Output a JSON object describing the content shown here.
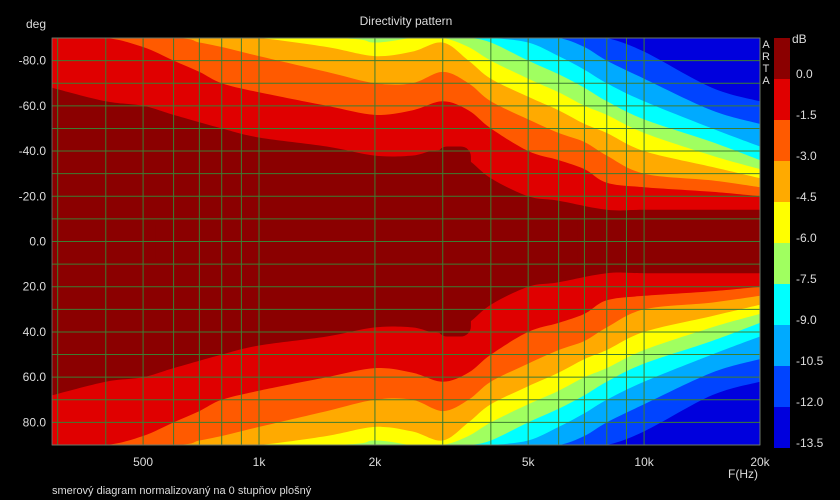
{
  "chart_data": {
    "type": "heatmap",
    "title": "Directivity pattern",
    "ylabel": "deg",
    "xlabel": "F(Hz)",
    "colorbar_label": "dB",
    "watermark": [
      "A",
      "R",
      "T",
      "A"
    ],
    "footnote": "smerový diagram normalizovaný na 0 stupňov plošný",
    "x_scale": "log",
    "xlim": [
      290,
      20000
    ],
    "ylim": [
      -90,
      90
    ],
    "y_inverted": true,
    "x_ticks": [
      {
        "value": 500,
        "label": "500"
      },
      {
        "value": 1000,
        "label": "1k"
      },
      {
        "value": 2000,
        "label": "2k"
      },
      {
        "value": 5000,
        "label": "5k"
      },
      {
        "value": 10000,
        "label": "10k"
      },
      {
        "value": 20000,
        "label": "20k"
      }
    ],
    "x_gridlines": [
      300,
      400,
      500,
      600,
      700,
      800,
      900,
      1000,
      2000,
      3000,
      4000,
      5000,
      6000,
      7000,
      8000,
      9000,
      10000,
      20000
    ],
    "y_ticks": [
      {
        "value": -80,
        "label": "-80.0"
      },
      {
        "value": -60,
        "label": "-60.0"
      },
      {
        "value": -40,
        "label": "-40.0"
      },
      {
        "value": -20,
        "label": "-20.0"
      },
      {
        "value": 0,
        "label": "0.0"
      },
      {
        "value": 20,
        "label": "20.0"
      },
      {
        "value": 40,
        "label": "40.0"
      },
      {
        "value": 60,
        "label": "60.0"
      },
      {
        "value": 80,
        "label": "80.0"
      }
    ],
    "levels": [
      {
        "label": "0.0",
        "color": "#8b0000"
      },
      {
        "label": "-1.5",
        "color": "#e00000"
      },
      {
        "label": "-3.0",
        "color": "#ff5a00"
      },
      {
        "label": "-4.5",
        "color": "#ffaa00"
      },
      {
        "label": "-6.0",
        "color": "#ffff00"
      },
      {
        "label": "-7.5",
        "color": "#a0ff60"
      },
      {
        "label": "-9.0",
        "color": "#00ffff"
      },
      {
        "label": "-10.5",
        "color": "#00aaff"
      },
      {
        "label": "-12.0",
        "color": "#0044ff"
      },
      {
        "label": "-13.5",
        "color": "#0000dd"
      }
    ],
    "bands": [
      {
        "level": -1.5,
        "half_angle": [
          [
            290,
            68
          ],
          [
            400,
            62
          ],
          [
            500,
            60
          ],
          [
            600,
            56
          ],
          [
            800,
            50
          ],
          [
            1000,
            46
          ],
          [
            1500,
            42
          ],
          [
            2000,
            38
          ],
          [
            2500,
            38
          ],
          [
            2800,
            40
          ],
          [
            3100,
            40
          ],
          [
            3500,
            36
          ],
          [
            4000,
            28
          ],
          [
            5000,
            20
          ],
          [
            6000,
            18
          ],
          [
            8000,
            14
          ],
          [
            10000,
            14
          ],
          [
            15000,
            14
          ],
          [
            20000,
            14
          ]
        ]
      },
      {
        "level": -3.0,
        "half_angle": [
          [
            290,
            90
          ],
          [
            400,
            90
          ],
          [
            500,
            86
          ],
          [
            600,
            80
          ],
          [
            700,
            75
          ],
          [
            800,
            70
          ],
          [
            1000,
            66
          ],
          [
            1500,
            60
          ],
          [
            2000,
            56
          ],
          [
            2500,
            58
          ],
          [
            3000,
            62
          ],
          [
            3500,
            58
          ],
          [
            4000,
            50
          ],
          [
            5000,
            40
          ],
          [
            6000,
            36
          ],
          [
            7000,
            32
          ],
          [
            8000,
            26
          ],
          [
            10000,
            24
          ],
          [
            15000,
            22
          ],
          [
            20000,
            20
          ]
        ]
      },
      {
        "level": -4.5,
        "half_angle": [
          [
            290,
            90
          ],
          [
            600,
            90
          ],
          [
            700,
            88
          ],
          [
            800,
            86
          ],
          [
            1000,
            82
          ],
          [
            1500,
            75
          ],
          [
            2000,
            70
          ],
          [
            2500,
            70
          ],
          [
            3000,
            75
          ],
          [
            3500,
            70
          ],
          [
            4000,
            62
          ],
          [
            5000,
            54
          ],
          [
            6000,
            48
          ],
          [
            7000,
            44
          ],
          [
            8000,
            38
          ],
          [
            10000,
            30
          ],
          [
            15000,
            27
          ],
          [
            20000,
            24
          ]
        ]
      },
      {
        "level": -6.0,
        "half_angle": [
          [
            290,
            90
          ],
          [
            800,
            90
          ],
          [
            1000,
            90
          ],
          [
            1500,
            86
          ],
          [
            2000,
            82
          ],
          [
            2500,
            84
          ],
          [
            3000,
            88
          ],
          [
            3500,
            80
          ],
          [
            4000,
            72
          ],
          [
            5000,
            64
          ],
          [
            6000,
            58
          ],
          [
            7000,
            52
          ],
          [
            8000,
            48
          ],
          [
            10000,
            40
          ],
          [
            15000,
            33
          ],
          [
            20000,
            28
          ]
        ]
      },
      {
        "level": -7.5,
        "half_angle": [
          [
            290,
            90
          ],
          [
            1500,
            90
          ],
          [
            2000,
            88
          ],
          [
            2500,
            90
          ],
          [
            3000,
            90
          ],
          [
            3500,
            86
          ],
          [
            4000,
            80
          ],
          [
            5000,
            72
          ],
          [
            6000,
            66
          ],
          [
            7000,
            60
          ],
          [
            8000,
            56
          ],
          [
            10000,
            48
          ],
          [
            15000,
            38
          ],
          [
            20000,
            32
          ]
        ]
      },
      {
        "level": -9.0,
        "half_angle": [
          [
            290,
            90
          ],
          [
            2000,
            90
          ],
          [
            3000,
            90
          ],
          [
            3500,
            90
          ],
          [
            4000,
            88
          ],
          [
            5000,
            80
          ],
          [
            6000,
            74
          ],
          [
            7000,
            68
          ],
          [
            8000,
            62
          ],
          [
            10000,
            54
          ],
          [
            15000,
            44
          ],
          [
            20000,
            36
          ]
        ]
      },
      {
        "level": -10.5,
        "half_angle": [
          [
            290,
            90
          ],
          [
            3500,
            90
          ],
          [
            4000,
            90
          ],
          [
            5000,
            88
          ],
          [
            6000,
            82
          ],
          [
            7000,
            76
          ],
          [
            8000,
            70
          ],
          [
            10000,
            62
          ],
          [
            15000,
            50
          ],
          [
            20000,
            42
          ]
        ]
      },
      {
        "level": -12.0,
        "half_angle": [
          [
            290,
            90
          ],
          [
            5000,
            90
          ],
          [
            6000,
            90
          ],
          [
            7000,
            86
          ],
          [
            8000,
            80
          ],
          [
            10000,
            72
          ],
          [
            15000,
            58
          ],
          [
            20000,
            52
          ]
        ]
      },
      {
        "level": -13.5,
        "half_angle": [
          [
            290,
            90
          ],
          [
            7000,
            90
          ],
          [
            8000,
            90
          ],
          [
            10000,
            84
          ],
          [
            15000,
            68
          ],
          [
            20000,
            62
          ]
        ]
      }
    ],
    "peak_regions": [
      {
        "level": 0.0,
        "x": [
          290,
          390
        ],
        "y": [
          -12,
          12
        ]
      },
      {
        "level": 0.0,
        "x": [
          540,
          700
        ],
        "y": [
          -12,
          12
        ]
      },
      {
        "level": 0.0,
        "x": [
          1820,
          2220
        ],
        "y": [
          -12,
          12
        ]
      },
      {
        "level": 0.0,
        "x": [
          2900,
          3550
        ],
        "y": [
          -42,
          42
        ]
      },
      {
        "level": 0.0,
        "x": [
          5950,
          6700
        ],
        "y": [
          -16,
          16
        ]
      }
    ]
  }
}
